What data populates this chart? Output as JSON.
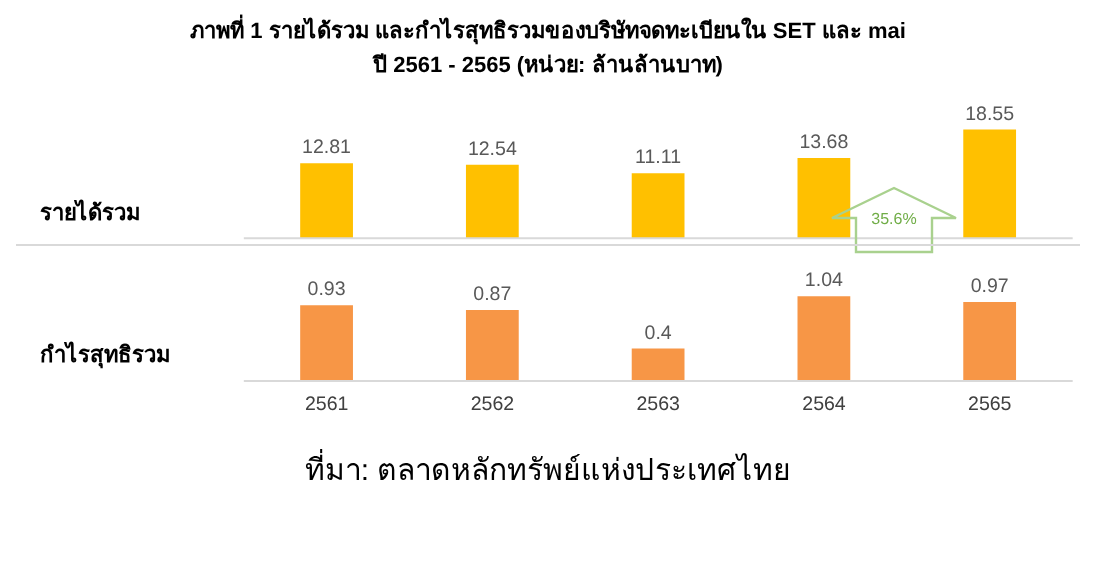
{
  "chart_data": [
    {
      "type": "bar",
      "title": "ภาพที่ 1 รายได้รวม และกำไรสุทธิรวมของบริษัทจดทะเบียนใน SET และ mai",
      "subtitle": "ปี 2561 - 2565 (หน่วย: ล้านล้านบาท)",
      "ylabel": "รายได้รวม",
      "categories": [
        "2561",
        "2562",
        "2563",
        "2564",
        "2565"
      ],
      "values": [
        12.81,
        12.54,
        11.11,
        13.68,
        18.55
      ],
      "color": "#ffc000",
      "data_labels": true,
      "tick_labels": false,
      "grid": false,
      "legend": false,
      "annotations": [
        "35.6%"
      ]
    },
    {
      "type": "bar",
      "ylabel": "กำไรสุทธิรวม",
      "categories": [
        "2561",
        "2562",
        "2563",
        "2564",
        "2565"
      ],
      "values": [
        0.93,
        0.87,
        0.4,
        1.04,
        0.97
      ],
      "color": "#f79646",
      "data_labels": true,
      "tick_labels": "x",
      "grid": false,
      "legend": false,
      "annotations": [
        "ที่มา: ตลาดหลักทรัพย์แห่งประเทศไทย"
      ]
    }
  ]
}
